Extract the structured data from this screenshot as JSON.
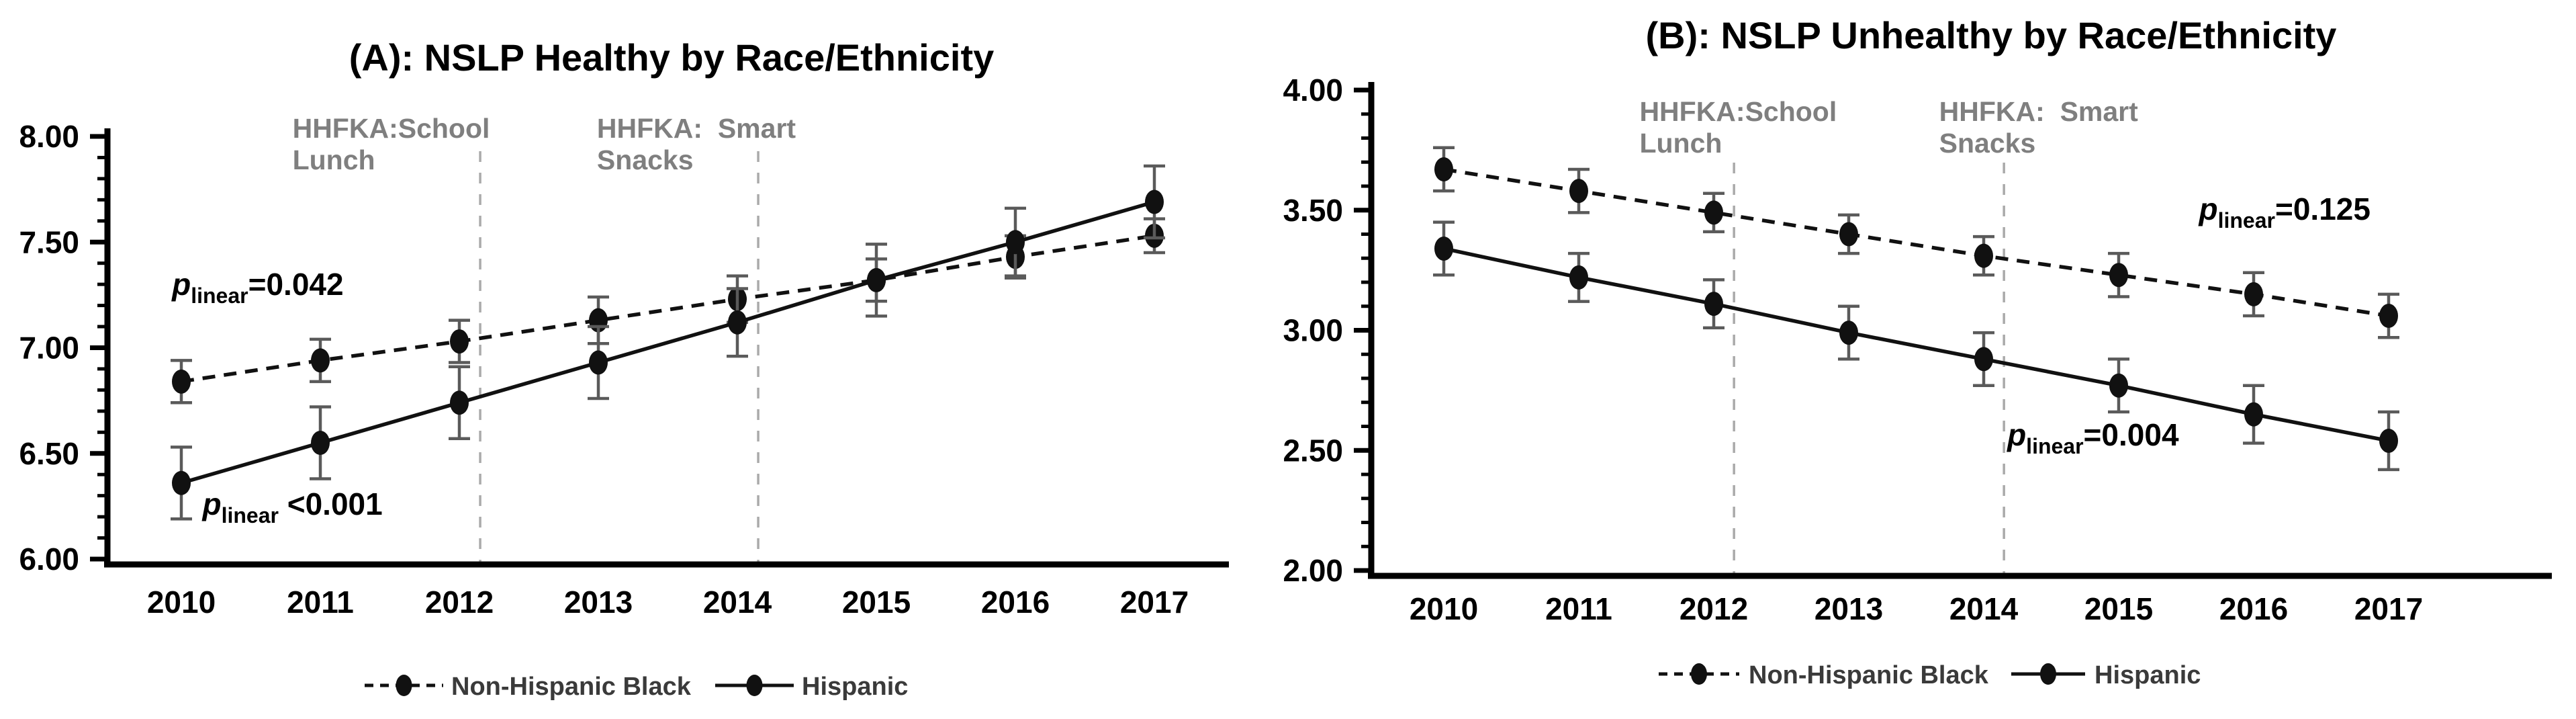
{
  "figure": {
    "background": "#ffffff",
    "colors": {
      "series": "#111111",
      "error_bar": "#5a5a5a",
      "reference_line": "#aaaaaa",
      "reference_label": "#7f7f7f",
      "legend_text": "#3a3a3a",
      "axis": "#000000"
    }
  },
  "chart_data": [
    {
      "type": "line",
      "panel_id": "A",
      "title": "(A): NSLP Healthy by Race/Ethnicity",
      "x": [
        2010,
        2011,
        2012,
        2013,
        2014,
        2015,
        2016,
        2017
      ],
      "xtick_labels": [
        "2010",
        "2011",
        "2012",
        "2013",
        "2014",
        "2015",
        "2016",
        "2017"
      ],
      "ylim": [
        6.0,
        8.0
      ],
      "ytick_step": 0.5,
      "yminor_step": 0.1,
      "ytick_labels": [
        "6.00",
        "6.50",
        "7.00",
        "7.50",
        "8.00"
      ],
      "grid": false,
      "legend_position": "bottom",
      "series": [
        {
          "name": "Non-Hispanic Black",
          "line_style": "dashed",
          "marker": "filled-ellipse",
          "values": [
            6.84,
            6.94,
            7.03,
            7.13,
            7.23,
            7.32,
            7.43,
            7.53
          ],
          "err": [
            0.1,
            0.1,
            0.1,
            0.11,
            0.11,
            0.1,
            0.1,
            0.08
          ]
        },
        {
          "name": "Hispanic",
          "line_style": "solid",
          "marker": "filled-ellipse",
          "values": [
            6.36,
            6.55,
            6.74,
            6.93,
            7.12,
            7.32,
            7.5,
            7.69
          ],
          "err": [
            0.17,
            0.17,
            0.17,
            0.17,
            0.16,
            0.17,
            0.16,
            0.17
          ]
        }
      ],
      "annotations": [
        {
          "p_prefix": "p",
          "p_sub": "linear",
          "p_rest": "=0.042",
          "x": 2010.55,
          "y": 7.25,
          "refers_to": "Non-Hispanic Black"
        },
        {
          "p_prefix": "p",
          "p_sub": "linear",
          "p_rest": " <0.001",
          "x": 2010.8,
          "y": 6.21,
          "refers_to": "Hispanic"
        }
      ],
      "reference_lines": [
        {
          "x": 2012,
          "label_line1": "HHFKA:School",
          "label_line2": "Lunch"
        },
        {
          "x": 2014,
          "label_line1": "HHFKA:  Smart",
          "label_line2": "Snacks"
        }
      ]
    },
    {
      "type": "line",
      "panel_id": "B",
      "title": "(B): NSLP Unhealthy by Race/Ethnicity",
      "x": [
        2010,
        2011,
        2012,
        2013,
        2014,
        2015,
        2016,
        2017
      ],
      "xtick_labels": [
        "2010",
        "2011",
        "2012",
        "2013",
        "2014",
        "2015",
        "2016",
        "2017"
      ],
      "ylim": [
        2.0,
        4.0
      ],
      "ytick_step": 0.5,
      "yminor_step": 0.1,
      "ytick_labels": [
        "2.00",
        "2.50",
        "3.00",
        "3.50",
        "4.00"
      ],
      "grid": false,
      "legend_position": "bottom",
      "series": [
        {
          "name": "Non-Hispanic Black",
          "line_style": "dashed",
          "marker": "filled-ellipse",
          "values": [
            3.67,
            3.58,
            3.49,
            3.4,
            3.31,
            3.23,
            3.15,
            3.06
          ],
          "err": [
            0.09,
            0.09,
            0.08,
            0.08,
            0.08,
            0.09,
            0.09,
            0.09
          ]
        },
        {
          "name": "Hispanic",
          "line_style": "solid",
          "marker": "filled-ellipse",
          "values": [
            3.34,
            3.22,
            3.11,
            2.99,
            2.88,
            2.77,
            2.65,
            2.54
          ],
          "err": [
            0.11,
            0.1,
            0.1,
            0.11,
            0.11,
            0.11,
            0.12,
            0.12
          ]
        }
      ],
      "annotations": [
        {
          "p_prefix": "p",
          "p_sub": "linear",
          "p_rest": "=0.125",
          "x": 2016.23,
          "y": 3.46,
          "refers_to": "Non-Hispanic Black"
        },
        {
          "p_prefix": "p",
          "p_sub": "linear",
          "p_rest": "=0.004",
          "x": 2014.81,
          "y": 2.52,
          "refers_to": "Hispanic"
        }
      ],
      "reference_lines": [
        {
          "x": 2012,
          "label_line1": "HHFKA:School",
          "label_line2": "Lunch"
        },
        {
          "x": 2014,
          "label_line1": "HHFKA:  Smart",
          "label_line2": "Snacks"
        }
      ]
    }
  ]
}
